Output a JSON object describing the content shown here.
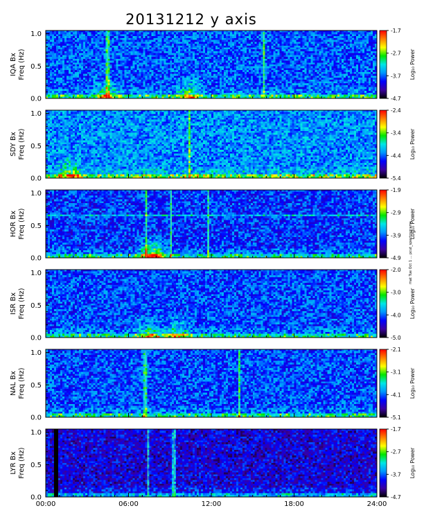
{
  "title": "20131212 y axis",
  "stamp": "mat Tue Oct 1 ... pcut_spectrograms",
  "colorbar_colors": [
    "#000000",
    "#3a00a0",
    "#0000ff",
    "#0096ff",
    "#00e6e6",
    "#00e600",
    "#ffff00",
    "#ff8000",
    "#ff0000"
  ],
  "chart_data": [
    {
      "type": "heatmap",
      "station": "IQA Bx",
      "ylabel_line1": "IQA Bx",
      "ylabel_line2": "Freq (Hz)",
      "x_range_hours": [
        0,
        24
      ],
      "ylim": [
        0,
        1.05
      ],
      "y_ticks": [
        "0.0",
        "0.5",
        "1.0"
      ],
      "colorbar": {
        "label": "Log₁₀ Power",
        "ticks": [
          "-1.7",
          "-2.7",
          "-3.7",
          "-4.7"
        ],
        "range": [
          -4.7,
          -1.7
        ]
      },
      "features": {
        "vertical_lines_hours": [
          4.5,
          15.8
        ],
        "burst_hours": [
          4.4,
          10.5
        ],
        "base_intensity": 0.38
      }
    },
    {
      "type": "heatmap",
      "station": "SDY Bx",
      "ylabel_line1": "SDY Bx",
      "ylabel_line2": "Freq (Hz)",
      "x_range_hours": [
        0,
        24
      ],
      "ylim": [
        0,
        1.05
      ],
      "y_ticks": [
        "0.0",
        "0.5",
        "1.0"
      ],
      "colorbar": {
        "label": "Log₁₀ Power",
        "ticks": [
          "-2.4",
          "-3.4",
          "-4.4",
          "-5.4"
        ],
        "range": [
          -5.4,
          -2.4
        ]
      },
      "features": {
        "vertical_lines_hours": [
          10.4
        ],
        "burst_hours": [
          1.8
        ],
        "base_intensity": 0.45
      }
    },
    {
      "type": "heatmap",
      "station": "HOR Bx",
      "ylabel_line1": "HOR Bx",
      "ylabel_line2": "Freq (Hz)",
      "x_range_hours": [
        0,
        24
      ],
      "ylim": [
        0,
        1.05
      ],
      "y_ticks": [
        "0.0",
        "0.5",
        "1.0"
      ],
      "colorbar": {
        "label": "Log₁₀ Power",
        "ticks": [
          "-1.9",
          "-2.9",
          "-3.9",
          "-4.9"
        ],
        "range": [
          -4.9,
          -1.9
        ]
      },
      "features": {
        "vertical_lines_hours": [
          7.3,
          9.1,
          11.8
        ],
        "burst_hours": [
          7.5,
          8.0
        ],
        "base_intensity": 0.33,
        "horizontal_line_hz": 0.67
      }
    },
    {
      "type": "heatmap",
      "station": "ISR Bx",
      "ylabel_line1": "ISR Bx",
      "ylabel_line2": "Freq (Hz)",
      "x_range_hours": [
        0,
        24
      ],
      "ylim": [
        0,
        1.05
      ],
      "y_ticks": [
        "0.0",
        "0.5",
        "1.0"
      ],
      "colorbar": {
        "label": "Log₁₀ Power",
        "ticks": [
          "-2.0",
          "-3.0",
          "-4.0",
          "-5.0"
        ],
        "range": [
          -5.0,
          -2.0
        ]
      },
      "features": {
        "vertical_lines_hours": [],
        "burst_hours": [
          7.5,
          9.5
        ],
        "base_intensity": 0.36
      }
    },
    {
      "type": "heatmap",
      "station": "NAL Bx",
      "ylabel_line1": "NAL Bx",
      "ylabel_line2": "Freq (Hz)",
      "x_range_hours": [
        0,
        24
      ],
      "ylim": [
        0,
        1.05
      ],
      "y_ticks": [
        "0.0",
        "0.5",
        "1.0"
      ],
      "colorbar": {
        "label": "Log₁₀ Power",
        "ticks": [
          "-2.1",
          "-3.1",
          "-4.1",
          "-5.1"
        ],
        "range": [
          -5.1,
          -2.1
        ]
      },
      "features": {
        "vertical_lines_hours": [
          14.0,
          7.2
        ],
        "burst_hours": [],
        "base_intensity": 0.36
      }
    },
    {
      "type": "heatmap",
      "station": "LYR Bx",
      "ylabel_line1": "LYR Bx",
      "ylabel_line2": "Freq (Hz)",
      "x_range_hours": [
        0,
        24
      ],
      "ylim": [
        0,
        1.05
      ],
      "y_ticks": [
        "0.0",
        "0.5",
        "1.0"
      ],
      "x_ticks": [
        "00:00",
        "06:00",
        "12:00",
        "18:00",
        "24:00"
      ],
      "colorbar": {
        "label": "Log₁₀ Power",
        "ticks": [
          "-1.7",
          "-2.7",
          "-3.7",
          "-4.7"
        ],
        "range": [
          -4.7,
          -1.7
        ]
      },
      "features": {
        "vertical_lines_hours": [
          7.4,
          9.3
        ],
        "burst_hours": [],
        "base_intensity": 0.22,
        "data_gap_hours": [
          0.6,
          0.9
        ]
      }
    }
  ]
}
